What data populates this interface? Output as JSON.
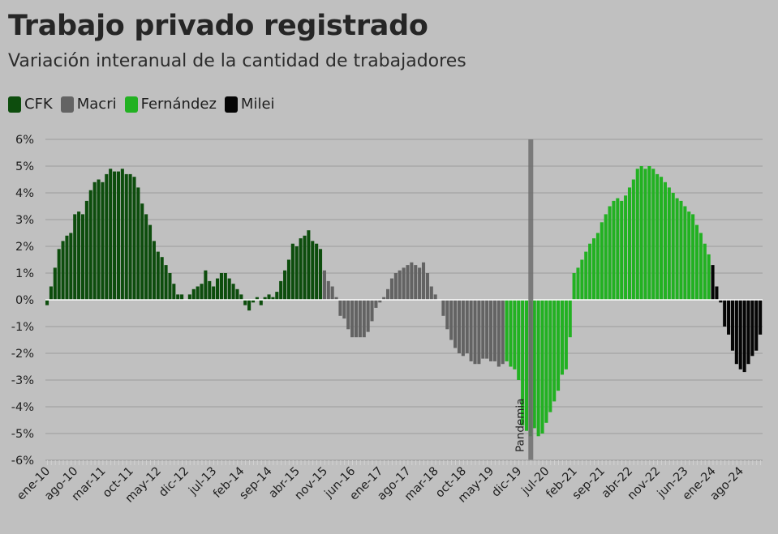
{
  "chart_data": {
    "type": "bar",
    "title": "Trabajo privado registrado",
    "subtitle": "Variación interanual de la cantidad de trabajadores",
    "ylabel": "",
    "xlabel": "",
    "ylim": [
      -6,
      6
    ],
    "y_ticks": [
      "6%",
      "5%",
      "4%",
      "3%",
      "2%",
      "1%",
      "0%",
      "-1%",
      "-2%",
      "-3%",
      "-4%",
      "-5%",
      "-6%"
    ],
    "y_tick_values": [
      6,
      5,
      4,
      3,
      2,
      1,
      0,
      -1,
      -2,
      -3,
      -4,
      -5,
      -6
    ],
    "x_tick_labels": [
      "ene-10",
      "ago-10",
      "mar-11",
      "oct-11",
      "may-12",
      "dic-12",
      "jul-13",
      "feb-14",
      "sep-14",
      "abr-15",
      "nov-15",
      "jun-16",
      "ene-17",
      "ago-17",
      "mar-18",
      "oct-18",
      "may-19",
      "dic-19",
      "jul-20",
      "feb-21",
      "sep-21",
      "abr-22",
      "nov-22",
      "jun-23",
      "ene-24",
      "ago-24"
    ],
    "annotation": {
      "label": "Pandemia",
      "at_period_index": 122
    },
    "series": [
      {
        "name": "CFK",
        "color": "#0d4d0d",
        "start_index": 0,
        "values": [
          -0.2,
          0.5,
          1.2,
          1.9,
          2.2,
          2.4,
          2.5,
          3.2,
          3.3,
          3.2,
          3.7,
          4.1,
          4.4,
          4.5,
          4.4,
          4.7,
          4.9,
          4.8,
          4.8,
          4.9,
          4.7,
          4.7,
          4.6,
          4.2,
          3.6,
          3.2,
          2.8,
          2.2,
          1.8,
          1.6,
          1.3,
          1.0,
          0.6,
          0.2,
          0.2,
          0.0,
          0.2,
          0.4,
          0.5,
          0.6,
          1.1,
          0.7,
          0.5,
          0.8,
          1.0,
          1.0,
          0.8,
          0.6,
          0.4,
          0.2,
          -0.2,
          -0.4,
          -0.1,
          0.1,
          -0.2,
          0.1,
          0.2,
          0.1,
          0.3,
          0.7,
          1.1,
          1.5,
          2.1,
          2.0,
          2.3,
          2.4,
          2.6,
          2.2,
          2.1,
          1.9
        ]
      },
      {
        "name": "Macri",
        "color": "#636363",
        "start_index": 70,
        "values": [
          1.1,
          0.7,
          0.5,
          0.1,
          -0.6,
          -0.7,
          -1.1,
          -1.4,
          -1.4,
          -1.4,
          -1.4,
          -1.2,
          -0.8,
          -0.3,
          -0.1,
          0.1,
          0.4,
          0.8,
          1.0,
          1.1,
          1.2,
          1.3,
          1.4,
          1.3,
          1.2,
          1.4,
          1.0,
          0.5,
          0.2,
          0.0,
          -0.6,
          -1.1,
          -1.5,
          -1.8,
          -2.0,
          -2.1,
          -2.0,
          -2.3,
          -2.4,
          -2.4,
          -2.2,
          -2.2,
          -2.3,
          -2.3,
          -2.5,
          -2.4
        ]
      },
      {
        "name": "Fernández",
        "color": "#22b122",
        "start_index": 116,
        "values": [
          -2.3,
          -2.5,
          -2.6,
          -3.0,
          -4.7,
          -4.9,
          -5.1,
          -4.8,
          -5.1,
          -5.0,
          -4.6,
          -4.2,
          -3.8,
          -3.4,
          -2.8,
          -2.6,
          -1.4,
          1.0,
          1.2,
          1.5,
          1.8,
          2.1,
          2.3,
          2.5,
          2.9,
          3.2,
          3.5,
          3.7,
          3.8,
          3.7,
          3.9,
          4.2,
          4.5,
          4.9,
          5.0,
          4.9,
          5.0,
          4.9,
          4.7,
          4.6,
          4.4,
          4.2,
          4.0,
          3.8,
          3.7,
          3.5,
          3.3,
          3.2,
          2.8,
          2.5,
          2.1,
          1.7
        ]
      },
      {
        "name": "Milei",
        "color": "#050505",
        "start_index": 168,
        "values": [
          1.3,
          0.5,
          -0.1,
          -1.0,
          -1.3,
          -1.9,
          -2.4,
          -2.6,
          -2.7,
          -2.4,
          -2.1,
          -1.9,
          -1.3
        ]
      }
    ]
  }
}
